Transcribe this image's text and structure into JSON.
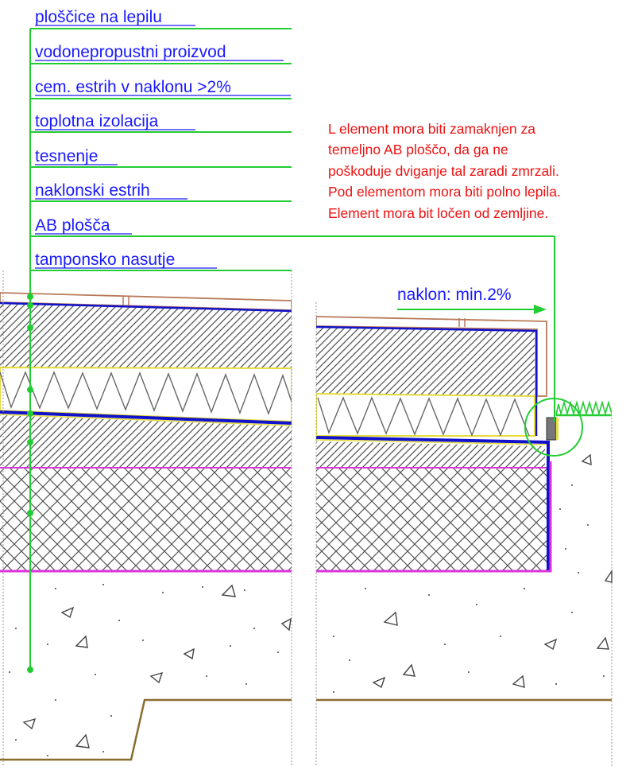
{
  "layers": [
    "ploščice na lepilu",
    "vodonepropustni proizvod",
    "cem. estrih v naklonu >2%",
    "toplotna izolacija",
    "tesnenje",
    "naklonski estrih",
    "AB plošča",
    "tamponsko nasutje"
  ],
  "note": [
    "L element mora biti zamaknjen za",
    "temeljno AB ploščo, da ga ne",
    "poškoduje dviganje tal zaradi zmrzali.",
    "Pod elementom mora biti polno lepila.",
    "Element mora bit ločen od zemljine."
  ],
  "slope_label": "naklon: min.2%",
  "colors": {
    "label": "#1a1aff",
    "leader": "#22cc33",
    "note": "#ee1111",
    "tile": "#b87a5a",
    "insulation_edge": "#e6dc3c",
    "membrane": "#1111cc",
    "slab_edge": "#dd33dd",
    "ground": "#8a6d2e"
  }
}
